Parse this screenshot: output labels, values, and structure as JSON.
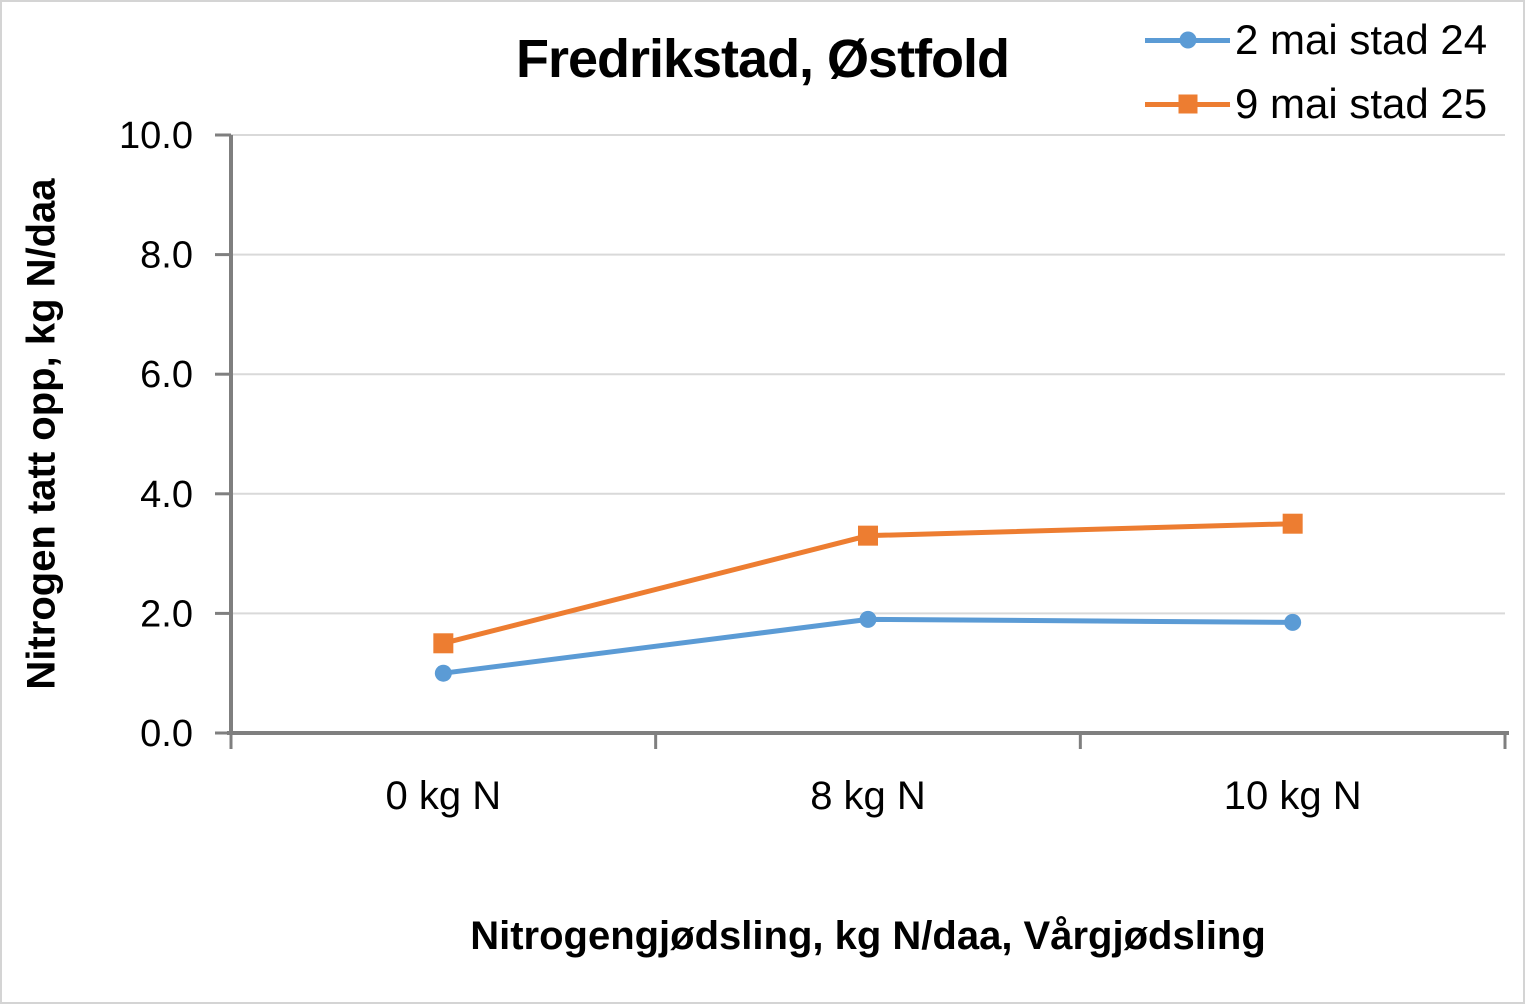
{
  "window": {
    "background": "#ffffff",
    "border_color": "#d4d4d4"
  },
  "chart_data": {
    "type": "line",
    "title": "Fredrikstad, Østfold",
    "xlabel": "Nitrogengjødsling, kg N/daa, Vårgjødsling",
    "ylabel": "Nitrogen tatt opp, kg N/daa",
    "categories": [
      "0 kg N",
      "8 kg N",
      "10 kg N"
    ],
    "series": [
      {
        "name": "2 mai stad 24",
        "values": [
          1.0,
          1.9,
          1.85
        ],
        "color": "#5B9BD5",
        "marker": "circle"
      },
      {
        "name": "9 mai stad 25",
        "values": [
          1.5,
          3.3,
          3.5
        ],
        "color": "#ED7D31",
        "marker": "square"
      }
    ],
    "ylim": [
      0,
      10
    ],
    "ytick_step": 2,
    "ytick_labels": [
      "0.0",
      "2.0",
      "4.0",
      "6.0",
      "8.0",
      "10.0"
    ],
    "grid": true,
    "legend_position": "top-right",
    "colors": {
      "axis": "#7f7f7f",
      "gridline": "#d9d9d9",
      "text": "#000000"
    }
  }
}
